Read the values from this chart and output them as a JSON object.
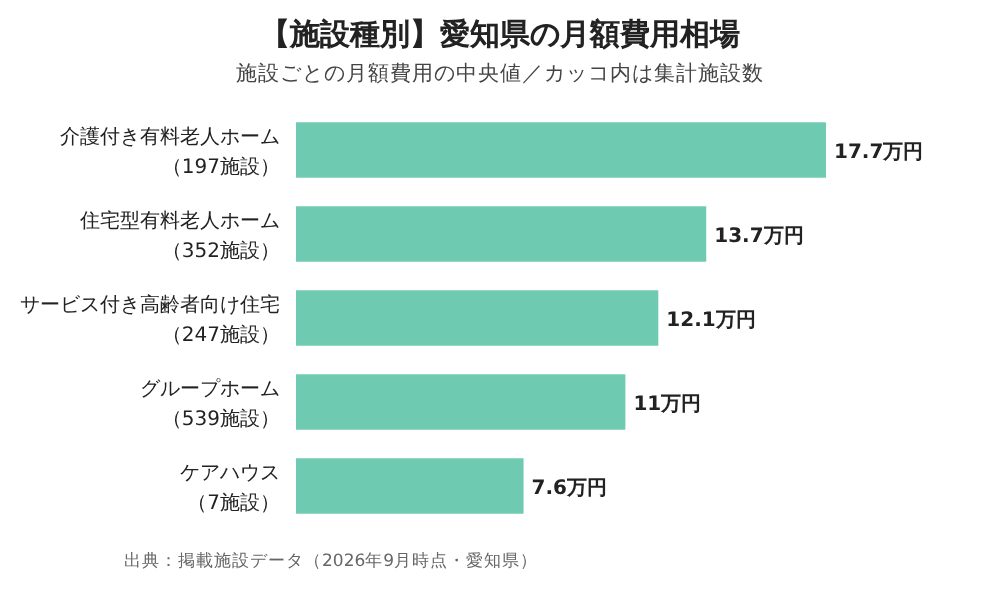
{
  "chart_data": {
    "type": "bar",
    "orientation": "horizontal",
    "title": "【施設種別】愛知県の月額費用相場",
    "subtitle": "施設ごとの月額費用の中央値／カッコ内は集計施設数",
    "categories": [
      "介護付き有料老人ホーム（197施設）",
      "住宅型有料老人ホーム（352施設）",
      "サービス付き高齢者向け住宅（247施設）",
      "グループホーム（539施設）",
      "ケアハウス（7施設）"
    ],
    "values": [
      17.7,
      13.7,
      12.1,
      11,
      7.6
    ],
    "value_labels": [
      "17.7万円",
      "13.7万円",
      "12.1万円",
      "11万円",
      "7.6万円"
    ],
    "color": "#6ecbb2",
    "grid": false,
    "annotations": [
      "出典：掲載施設データ（2026年9月時点・愛知県）"
    ]
  }
}
